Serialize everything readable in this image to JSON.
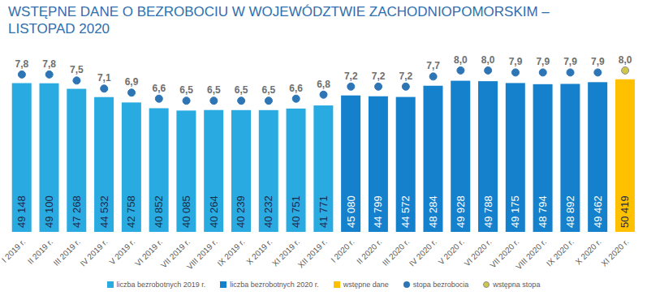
{
  "chart_data": {
    "type": "bar",
    "title": "WSTĘPNE DANE O BEZROBOCIU W WOJEWÓDZTWIE ZACHODNIOPOMORSKIM – LISTOPAD 2020",
    "categories": [
      "I 2019 r.",
      "II 2019 r.",
      "III 2019 r.",
      "IV 2019 r.",
      "V 2019 r.",
      "VI 2019 r.",
      "VII 2019 r.",
      "VIII 2019 r.",
      "IX 2019 r.",
      "X 2019 r.",
      "XI 2019 r.",
      "XII 2019 r.",
      "I 2020 r.",
      "II 2020 r.",
      "III 2020 r.",
      "IV 2020 r.",
      "V 2020 r.",
      "VI 2020 r.",
      "VII 2020 r.",
      "VIII 2020 r.",
      "IX 2020 r.",
      "X 2020 r.",
      "XI 2020 r."
    ],
    "series": [
      {
        "name": "liczba bezrobotnych 2019 r.",
        "type": "bar",
        "color": "#29abe2",
        "values": [
          49148,
          49100,
          47268,
          44532,
          42758,
          40852,
          40085,
          40264,
          40239,
          40232,
          40751,
          41771,
          null,
          null,
          null,
          null,
          null,
          null,
          null,
          null,
          null,
          null,
          null
        ],
        "value_labels": [
          "49 148",
          "49 100",
          "47 268",
          "44 532",
          "42 758",
          "40 852",
          "40 085",
          "40 264",
          "40 239",
          "40 232",
          "40 751",
          "41 771",
          null,
          null,
          null,
          null,
          null,
          null,
          null,
          null,
          null,
          null,
          null
        ]
      },
      {
        "name": "liczba bezrobotnych 2020 r.",
        "type": "bar",
        "color": "#1580cc",
        "values": [
          null,
          null,
          null,
          null,
          null,
          null,
          null,
          null,
          null,
          null,
          null,
          null,
          45080,
          44799,
          44572,
          48284,
          49928,
          49788,
          49175,
          48794,
          48892,
          49462,
          null
        ],
        "value_labels": [
          null,
          null,
          null,
          null,
          null,
          null,
          null,
          null,
          null,
          null,
          null,
          null,
          "45 080",
          "44 799",
          "44 572",
          "48 284",
          "49 928",
          "49 788",
          "49 175",
          "48 794",
          "48 892",
          "49 462",
          null
        ]
      },
      {
        "name": "wstępne dane",
        "type": "bar",
        "color": "#ffc000",
        "values": [
          null,
          null,
          null,
          null,
          null,
          null,
          null,
          null,
          null,
          null,
          null,
          null,
          null,
          null,
          null,
          null,
          null,
          null,
          null,
          null,
          null,
          null,
          50419
        ],
        "value_labels": [
          null,
          null,
          null,
          null,
          null,
          null,
          null,
          null,
          null,
          null,
          null,
          null,
          null,
          null,
          null,
          null,
          null,
          null,
          null,
          null,
          null,
          null,
          "50 419"
        ]
      },
      {
        "name": "stopa bezrobocia",
        "type": "scatter",
        "axis": "y2",
        "marker": "circle",
        "color": "#2e75b6",
        "values": [
          7.8,
          7.8,
          7.5,
          7.1,
          6.9,
          6.6,
          6.5,
          6.5,
          6.5,
          6.5,
          6.6,
          6.8,
          7.2,
          7.2,
          7.2,
          7.7,
          8.0,
          8.0,
          7.9,
          7.9,
          7.9,
          7.9,
          null
        ],
        "value_labels": [
          "7,8",
          "7,8",
          "7,5",
          "7,1",
          "6,9",
          "6,6",
          "6,5",
          "6,5",
          "6,5",
          "6,5",
          "6,6",
          "6,8",
          "7,2",
          "7,2",
          "7,2",
          "7,7",
          "8,0",
          "8,0",
          "7,9",
          "7,9",
          "7,9",
          "7,9",
          null
        ]
      },
      {
        "name": "wstępna stopa",
        "type": "scatter",
        "axis": "y2",
        "marker": "circle",
        "color": "#cfc64a",
        "values": [
          null,
          null,
          null,
          null,
          null,
          null,
          null,
          null,
          null,
          null,
          null,
          null,
          null,
          null,
          null,
          null,
          null,
          null,
          null,
          null,
          null,
          null,
          8.0
        ],
        "value_labels": [
          null,
          null,
          null,
          null,
          null,
          null,
          null,
          null,
          null,
          null,
          null,
          null,
          null,
          null,
          null,
          null,
          null,
          null,
          null,
          null,
          null,
          null,
          "8,0"
        ]
      }
    ],
    "ylim": [
      0,
      60000
    ],
    "y2lim": [
      0,
      9
    ],
    "tick_labels": "x",
    "grid": false,
    "data_labels": true,
    "legend": "bottom"
  }
}
